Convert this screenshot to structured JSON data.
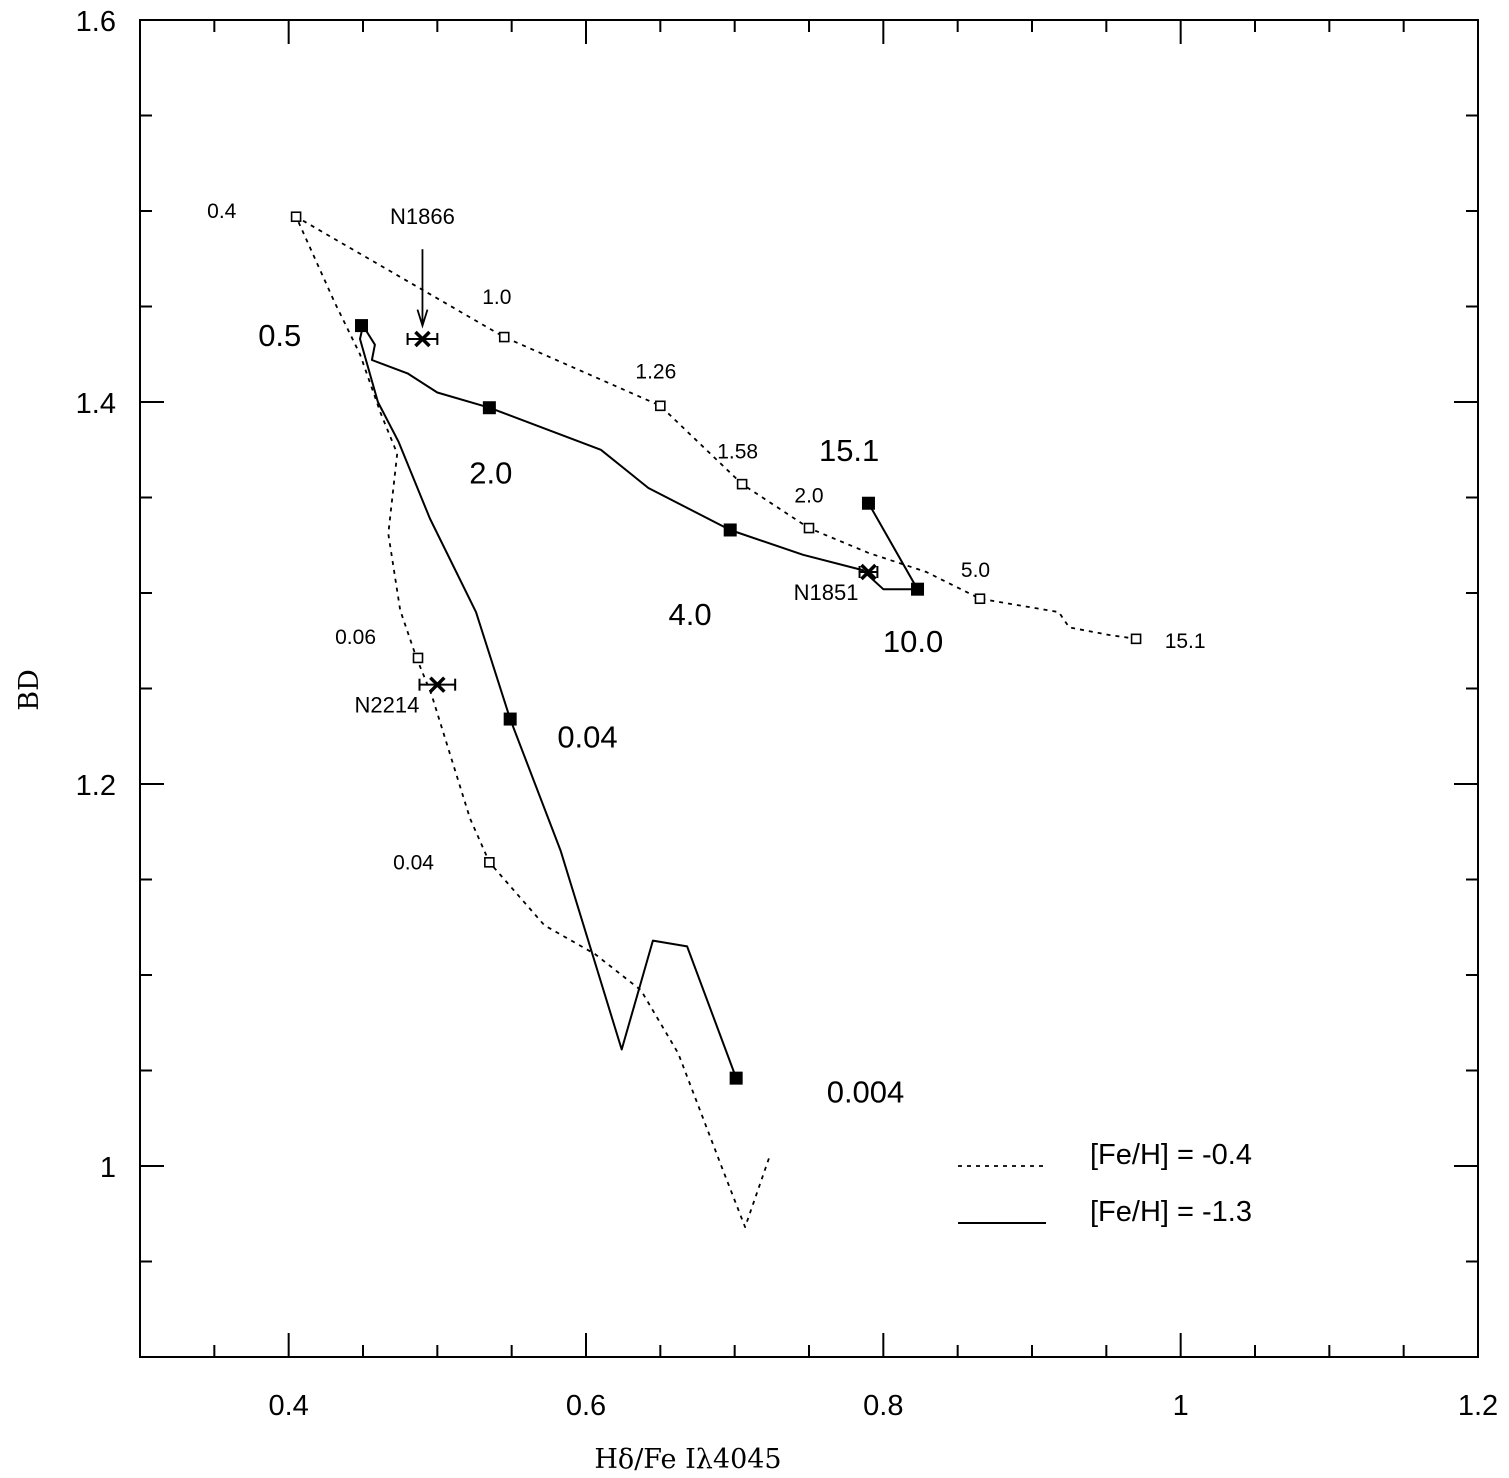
{
  "chart_data": {
    "type": "line",
    "title": "",
    "xlabel": "Hδ/Fe Iλ4045",
    "ylabel": "BD",
    "xlim": [
      0.3,
      1.2
    ],
    "ylim": [
      0.9,
      1.6
    ],
    "xticks": [
      {
        "v": 0.4,
        "label": "0.4"
      },
      {
        "v": 0.6,
        "label": "0.6"
      },
      {
        "v": 0.8,
        "label": "0.8"
      },
      {
        "v": 1.0,
        "label": "1"
      },
      {
        "v": 1.2,
        "label": "1.2"
      }
    ],
    "yticks": [
      {
        "v": 1.0,
        "label": "1"
      },
      {
        "v": 1.2,
        "label": "1.2"
      },
      {
        "v": 1.4,
        "label": "1.4"
      },
      {
        "v": 1.6,
        "label": "1.6"
      }
    ],
    "xminor": [
      0.35,
      0.45,
      0.5,
      0.55,
      0.65,
      0.7,
      0.75,
      0.85,
      0.9,
      0.95,
      1.05,
      1.1,
      1.15
    ],
    "yminor": [
      0.95,
      1.05,
      1.1,
      1.15,
      1.25,
      1.3,
      1.35,
      1.45,
      1.5,
      1.55
    ],
    "series": [
      {
        "name": "[Fe/H] = -0.4",
        "style": "dotted",
        "points": [
          [
            0.723,
            1.004
          ],
          [
            0.707,
            0.968
          ],
          [
            0.692,
            0.998
          ],
          [
            0.662,
            1.059
          ],
          [
            0.637,
            1.092
          ],
          [
            0.606,
            1.111
          ],
          [
            0.572,
            1.126
          ],
          [
            0.535,
            1.159
          ],
          [
            0.522,
            1.182
          ],
          [
            0.508,
            1.217
          ],
          [
            0.496,
            1.247
          ],
          [
            0.486,
            1.266
          ],
          [
            0.475,
            1.291
          ],
          [
            0.467,
            1.331
          ],
          [
            0.473,
            1.373
          ],
          [
            0.462,
            1.394
          ],
          [
            0.448,
            1.425
          ],
          [
            0.431,
            1.452
          ],
          [
            0.405,
            1.497
          ],
          [
            0.545,
            1.434
          ],
          [
            0.65,
            1.398
          ],
          [
            0.705,
            1.357
          ],
          [
            0.75,
            1.334
          ],
          [
            0.79,
            1.321
          ],
          [
            0.829,
            1.311
          ],
          [
            0.865,
            1.297
          ],
          [
            0.918,
            1.29
          ],
          [
            0.925,
            1.282
          ],
          [
            0.952,
            1.278
          ],
          [
            0.97,
            1.276
          ]
        ]
      },
      {
        "name": "[Fe/H] = -1.3",
        "style": "solid",
        "points": [
          [
            0.701,
            1.046
          ],
          [
            0.668,
            1.115
          ],
          [
            0.645,
            1.118
          ],
          [
            0.624,
            1.061
          ],
          [
            0.583,
            1.165
          ],
          [
            0.549,
            1.234
          ],
          [
            0.526,
            1.29
          ],
          [
            0.495,
            1.339
          ],
          [
            0.474,
            1.379
          ],
          [
            0.46,
            1.4
          ],
          [
            0.448,
            1.433
          ],
          [
            0.45,
            1.44
          ],
          [
            0.458,
            1.43
          ],
          [
            0.456,
            1.422
          ],
          [
            0.48,
            1.415
          ],
          [
            0.5,
            1.405
          ],
          [
            0.535,
            1.397
          ],
          [
            0.61,
            1.375
          ],
          [
            0.642,
            1.355
          ],
          [
            0.697,
            1.333
          ],
          [
            0.746,
            1.32
          ],
          [
            0.786,
            1.312
          ],
          [
            0.8,
            1.302
          ],
          [
            0.823,
            1.302
          ],
          [
            0.79,
            1.347
          ]
        ]
      }
    ],
    "markers": {
      "filled_squares": [
        [
          0.449,
          1.44
        ],
        [
          0.535,
          1.397
        ],
        [
          0.697,
          1.333
        ],
        [
          0.823,
          1.302
        ],
        [
          0.79,
          1.347
        ],
        [
          0.549,
          1.234
        ],
        [
          0.701,
          1.046
        ]
      ],
      "open_squares": [
        [
          0.405,
          1.497
        ],
        [
          0.545,
          1.434
        ],
        [
          0.65,
          1.398
        ],
        [
          0.705,
          1.357
        ],
        [
          0.75,
          1.334
        ],
        [
          0.865,
          1.297
        ],
        [
          0.97,
          1.276
        ],
        [
          0.487,
          1.266
        ],
        [
          0.535,
          1.159
        ]
      ]
    },
    "clusters": [
      {
        "name": "N1866",
        "x": 0.49,
        "y": 1.433,
        "xerr": 0.01
      },
      {
        "name": "N1851",
        "x": 0.79,
        "y": 1.311,
        "xerr": 0.006
      },
      {
        "name": "N2214",
        "x": 0.5,
        "y": 1.252,
        "xerr": 0.012
      }
    ],
    "arrow": {
      "label_ref": "N1866",
      "from": [
        0.49,
        1.48
      ],
      "to": [
        0.49,
        1.44
      ]
    },
    "age_labels_fe04": [
      {
        "text": "0.4",
        "x": 0.355,
        "y": 1.5
      },
      {
        "text": "1.0",
        "x": 0.54,
        "y": 1.455
      },
      {
        "text": "1.26",
        "x": 0.647,
        "y": 1.416
      },
      {
        "text": "1.58",
        "x": 0.702,
        "y": 1.374
      },
      {
        "text": "2.0",
        "x": 0.75,
        "y": 1.351
      },
      {
        "text": "5.0",
        "x": 0.862,
        "y": 1.312
      },
      {
        "text": "15.1",
        "x": 1.003,
        "y": 1.275
      },
      {
        "text": "0.06",
        "x": 0.445,
        "y": 1.277
      },
      {
        "text": "0.04",
        "x": 0.484,
        "y": 1.159
      }
    ],
    "age_labels_fe13": [
      {
        "text": "0.5",
        "x": 0.394,
        "y": 1.435
      },
      {
        "text": "2.0",
        "x": 0.536,
        "y": 1.363
      },
      {
        "text": "15.1",
        "x": 0.777,
        "y": 1.375
      },
      {
        "text": "4.0",
        "x": 0.67,
        "y": 1.289
      },
      {
        "text": "10.0",
        "x": 0.82,
        "y": 1.275
      },
      {
        "text": "0.04",
        "x": 0.601,
        "y": 1.225
      },
      {
        "text": "0.004",
        "x": 0.788,
        "y": 1.039
      }
    ],
    "legend": {
      "placement": "bottom-right",
      "items": [
        {
          "label": "[Fe/H] = -0.4",
          "style": "dotted"
        },
        {
          "label": "[Fe/H] = -1.3",
          "style": "solid"
        }
      ]
    }
  }
}
